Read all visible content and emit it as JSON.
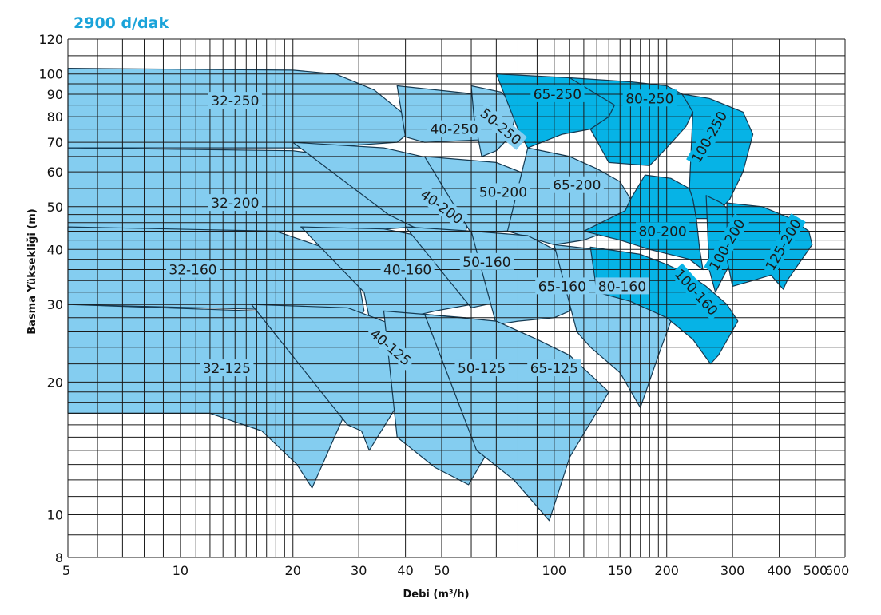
{
  "title": "2900 d/dak",
  "colors": {
    "light_region": "#84cdf0",
    "dark_region": "#06b3e6",
    "outline": "#153a52",
    "grid": "#1a1a1a",
    "title": "#1aa3d9"
  },
  "chart_data": {
    "type": "area",
    "title": "2900 d/dak",
    "xlabel": "Debi (m³/h)",
    "ylabel": "Basma Yüksekliği (m)",
    "xscale": "log",
    "yscale": "log",
    "xlim": [
      5,
      600
    ],
    "ylim": [
      8,
      120
    ],
    "grid": true,
    "x_ticks": [
      5,
      10,
      20,
      30,
      40,
      50,
      100,
      150,
      200,
      300,
      400,
      500,
      600
    ],
    "y_ticks": [
      8,
      10,
      20,
      30,
      40,
      50,
      60,
      70,
      80,
      90,
      100,
      120
    ],
    "series": [
      {
        "name": "32-250",
        "shade": "light",
        "pos": [
          14,
          87
        ],
        "rot": 0,
        "points": [
          [
            5,
            103
          ],
          [
            20,
            102
          ],
          [
            26,
            100
          ],
          [
            33,
            92
          ],
          [
            39,
            82
          ],
          [
            42,
            75
          ],
          [
            38,
            70
          ],
          [
            23,
            68
          ],
          [
            5,
            68
          ]
        ]
      },
      {
        "name": "32-200",
        "shade": "light",
        "pos": [
          14,
          51
        ],
        "rot": 0,
        "points": [
          [
            5,
            68
          ],
          [
            20,
            67
          ],
          [
            26,
            65
          ],
          [
            34,
            57
          ],
          [
            39,
            48
          ],
          [
            42,
            45
          ],
          [
            30,
            44
          ],
          [
            18,
            44
          ],
          [
            5,
            44
          ]
        ]
      },
      {
        "name": "32-160",
        "shade": "light",
        "pos": [
          10.8,
          36
        ],
        "rot": 0,
        "points": [
          [
            5,
            45
          ],
          [
            18,
            44
          ],
          [
            25,
            40
          ],
          [
            30,
            34
          ],
          [
            31,
            29
          ],
          [
            30,
            28
          ],
          [
            25,
            29
          ],
          [
            5,
            30
          ]
        ]
      },
      {
        "name": "32-125",
        "shade": "light",
        "pos": [
          13.3,
          21.5
        ],
        "rot": 0,
        "points": [
          [
            5,
            30
          ],
          [
            16,
            29
          ],
          [
            23,
            26
          ],
          [
            28,
            22.5
          ],
          [
            30,
            20
          ],
          [
            22.5,
            11.5
          ],
          [
            20.5,
            13
          ],
          [
            16.5,
            15.5
          ],
          [
            12,
            17
          ],
          [
            5,
            17
          ]
        ]
      },
      {
        "name": "40-250",
        "shade": "light",
        "pos": [
          54,
          75
        ],
        "rot": 0,
        "points": [
          [
            40,
            72
          ],
          [
            38,
            94
          ],
          [
            70,
            89
          ],
          [
            76,
            78
          ],
          [
            65,
            71
          ],
          [
            45,
            70
          ]
        ]
      },
      {
        "name": "40-200",
        "shade": "light",
        "pos": [
          50,
          50
        ],
        "rot": 36,
        "points": [
          [
            20,
            70
          ],
          [
            35,
            68
          ],
          [
            48,
            64
          ],
          [
            57,
            57
          ],
          [
            62,
            55
          ],
          [
            58,
            44
          ],
          [
            48,
            43.5
          ],
          [
            42,
            45
          ],
          [
            36,
            48
          ]
        ]
      },
      {
        "name": "40-160",
        "shade": "light",
        "pos": [
          40.5,
          36
        ],
        "rot": 0,
        "points": [
          [
            21,
            45
          ],
          [
            35,
            44.5
          ],
          [
            50,
            42
          ],
          [
            58,
            36
          ],
          [
            60,
            30
          ],
          [
            48,
            29
          ],
          [
            40,
            28
          ],
          [
            32,
            28
          ],
          [
            31,
            32
          ]
        ]
      },
      {
        "name": "40-125",
        "shade": "light",
        "pos": [
          36.5,
          24
        ],
        "rot": 40,
        "points": [
          [
            15.5,
            30
          ],
          [
            28,
            29.5
          ],
          [
            37,
            27
          ],
          [
            42,
            22.5
          ],
          [
            40,
            19
          ],
          [
            32,
            14
          ],
          [
            30.5,
            15.5
          ],
          [
            28,
            16
          ]
        ]
      },
      {
        "name": "50-250",
        "shade": "light",
        "pos": [
          72,
          76
        ],
        "rot": 40,
        "points": [
          [
            60,
            94
          ],
          [
            72,
            91
          ],
          [
            80,
            84
          ],
          [
            76,
            72
          ],
          [
            70,
            67
          ],
          [
            64,
            65
          ],
          [
            61,
            80
          ]
        ]
      },
      {
        "name": "50-200",
        "shade": "light",
        "pos": [
          73,
          54
        ],
        "rot": 0,
        "points": [
          [
            45,
            65
          ],
          [
            70,
            63
          ],
          [
            85,
            59
          ],
          [
            95,
            53
          ],
          [
            100,
            46
          ],
          [
            88,
            44.5
          ],
          [
            74,
            44
          ],
          [
            60,
            43.5
          ]
        ]
      },
      {
        "name": "50-160",
        "shade": "light",
        "pos": [
          66,
          37.5
        ],
        "rot": 0,
        "points": [
          [
            40,
            45
          ],
          [
            60,
            44
          ],
          [
            80,
            41
          ],
          [
            92,
            37
          ],
          [
            95,
            32
          ],
          [
            80,
            31
          ],
          [
            66,
            30
          ],
          [
            60,
            29.5
          ]
        ]
      },
      {
        "name": "50-125",
        "shade": "light",
        "pos": [
          64,
          21.5
        ],
        "rot": 0,
        "points": [
          [
            35,
            29
          ],
          [
            58,
            28
          ],
          [
            75,
            26
          ],
          [
            92,
            23
          ],
          [
            95,
            20
          ],
          [
            70,
            15
          ],
          [
            59,
            11.7
          ],
          [
            48,
            12.8
          ],
          [
            38,
            15
          ]
        ]
      },
      {
        "name": "65-250",
        "shade": "dark",
        "pos": [
          102,
          90
        ],
        "rot": 0,
        "points": [
          [
            70,
            100
          ],
          [
            110,
            98
          ],
          [
            140,
            94
          ],
          [
            145,
            85
          ],
          [
            140,
            80
          ],
          [
            125,
            75
          ],
          [
            105,
            73
          ],
          [
            85,
            68
          ],
          [
            80,
            75
          ]
        ]
      },
      {
        "name": "65-200",
        "shade": "light",
        "pos": [
          115,
          56
        ],
        "rot": 0,
        "points": [
          [
            85,
            68
          ],
          [
            110,
            65
          ],
          [
            130,
            61
          ],
          [
            150,
            57
          ],
          [
            160,
            52
          ],
          [
            155,
            49
          ],
          [
            140,
            44
          ],
          [
            120,
            42
          ],
          [
            100,
            41
          ],
          [
            75,
            44
          ]
        ]
      },
      {
        "name": "65-160",
        "shade": "light",
        "pos": [
          105,
          33
        ],
        "rot": 0,
        "points": [
          [
            60,
            44
          ],
          [
            85,
            43
          ],
          [
            100,
            40
          ],
          [
            115,
            36
          ],
          [
            120,
            33
          ],
          [
            110,
            29
          ],
          [
            100,
            28
          ],
          [
            80,
            27.5
          ],
          [
            70,
            27
          ]
        ]
      },
      {
        "name": "65-125",
        "shade": "light",
        "pos": [
          100,
          21.5
        ],
        "rot": 0,
        "points": [
          [
            45,
            28.5
          ],
          [
            70,
            27.5
          ],
          [
            90,
            25
          ],
          [
            110,
            23
          ],
          [
            140,
            19
          ],
          [
            110,
            13.5
          ],
          [
            97,
            9.7
          ],
          [
            78,
            12
          ],
          [
            62,
            14
          ]
        ]
      },
      {
        "name": "80-250",
        "shade": "dark",
        "pos": [
          180,
          88
        ],
        "rot": 0,
        "points": [
          [
            110,
            98
          ],
          [
            160,
            96
          ],
          [
            200,
            94
          ],
          [
            220,
            90
          ],
          [
            235,
            82
          ],
          [
            225,
            76
          ],
          [
            200,
            68
          ],
          [
            180,
            62
          ],
          [
            140,
            63
          ],
          [
            125,
            75
          ],
          [
            140,
            80
          ],
          [
            145,
            85
          ]
        ]
      },
      {
        "name": "80-200",
        "shade": "dark",
        "pos": [
          195,
          44
        ],
        "rot": 0,
        "points": [
          [
            120,
            44
          ],
          [
            150,
            42
          ],
          [
            180,
            40
          ],
          [
            230,
            38
          ],
          [
            250,
            36
          ],
          [
            245,
            40
          ],
          [
            240,
            47
          ],
          [
            235,
            52
          ],
          [
            230,
            55
          ],
          [
            205,
            58
          ],
          [
            175,
            59
          ],
          [
            160,
            52
          ],
          [
            155,
            49
          ]
        ]
      },
      {
        "name": "80-160",
        "shade": "light",
        "pos": [
          152,
          33
        ],
        "rot": 0,
        "points": [
          [
            100,
            41
          ],
          [
            130,
            40
          ],
          [
            160,
            37
          ],
          [
            190,
            33
          ],
          [
            210,
            29
          ],
          [
            190,
            23
          ],
          [
            170,
            17.5
          ],
          [
            150,
            21
          ],
          [
            125,
            24
          ],
          [
            115,
            26
          ]
        ]
      },
      {
        "name": "100-250",
        "shade": "dark",
        "pos": [
          260,
          72
        ],
        "rot": -60,
        "points": [
          [
            220,
            90
          ],
          [
            260,
            88
          ],
          [
            320,
            82
          ],
          [
            340,
            73
          ],
          [
            320,
            60
          ],
          [
            295,
            52
          ],
          [
            265,
            47
          ],
          [
            240,
            47
          ],
          [
            235,
            52
          ],
          [
            230,
            55
          ],
          [
            235,
            82
          ]
        ]
      },
      {
        "name": "100-200",
        "shade": "dark",
        "pos": [
          290,
          41
        ],
        "rot": -60,
        "points": [
          [
            255,
            53
          ],
          [
            280,
            51
          ],
          [
            310,
            47
          ],
          [
            320,
            43
          ],
          [
            300,
            38
          ],
          [
            280,
            34
          ],
          [
            270,
            32
          ],
          [
            260,
            36
          ]
        ]
      },
      {
        "name": "100-160",
        "shade": "dark",
        "pos": [
          240,
          32
        ],
        "rot": 48,
        "points": [
          [
            125,
            40.5
          ],
          [
            170,
            39
          ],
          [
            200,
            37
          ],
          [
            230,
            35
          ],
          [
            255,
            33
          ],
          [
            290,
            30
          ],
          [
            310,
            27.5
          ],
          [
            275,
            23
          ],
          [
            262,
            22
          ],
          [
            235,
            25
          ],
          [
            200,
            28
          ],
          [
            160,
            30.5
          ],
          [
            130,
            32
          ]
        ]
      },
      {
        "name": "125-200",
        "shade": "dark",
        "pos": [
          410,
          41
        ],
        "rot": -60,
        "points": [
          [
            290,
            51
          ],
          [
            360,
            50
          ],
          [
            430,
            47
          ],
          [
            480,
            44
          ],
          [
            490,
            41
          ],
          [
            450,
            37
          ],
          [
            420,
            34
          ],
          [
            410,
            32.5
          ],
          [
            380,
            35
          ],
          [
            340,
            34
          ],
          [
            300,
            33
          ],
          [
            290,
            38
          ]
        ]
      }
    ]
  }
}
